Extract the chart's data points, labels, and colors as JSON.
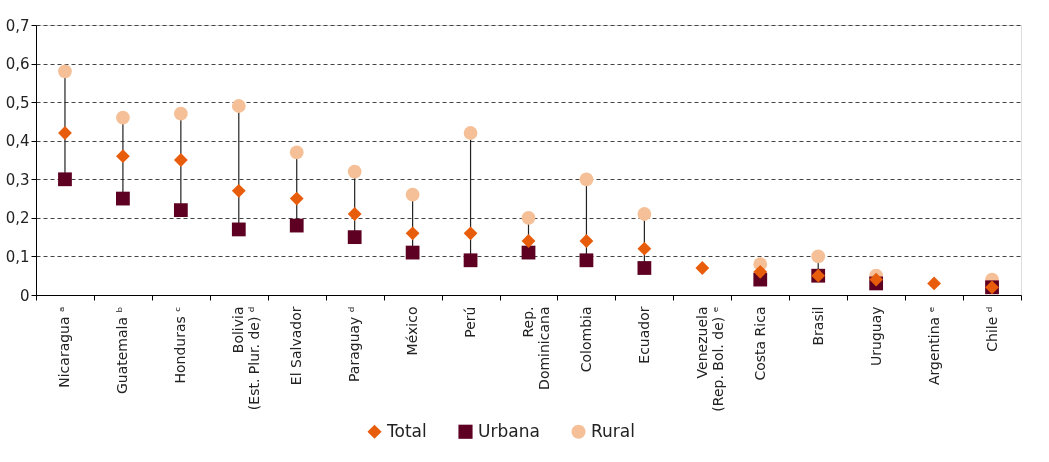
{
  "chart_data": {
    "type": "scatter",
    "categories": [
      "Nicaragua ᵃ",
      "Guatemala ᵇ",
      "Honduras ᶜ",
      "Bolivia\n(Est. Plur. de) ᵈ",
      "El Salvador",
      "Paraguay ᵈ",
      "México",
      "Perú",
      "Rep.\nDominicana",
      "Colombia",
      "Ecuador",
      "Venezuela\n(Rep. Bol. de) ᵉ",
      "Costa Rica",
      "Brasil",
      "Uruguay",
      "Argentina ᵉ",
      "Chile ᵈ"
    ],
    "series": [
      {
        "name": "Total",
        "color": "#e85d0c",
        "marker": "diamond",
        "values": [
          0.42,
          0.36,
          0.35,
          0.27,
          0.25,
          0.21,
          0.16,
          0.16,
          0.14,
          0.14,
          0.12,
          0.07,
          0.06,
          0.05,
          0.04,
          0.03,
          0.02
        ]
      },
      {
        "name": "Urbana",
        "color": "#5e0022",
        "marker": "square",
        "values": [
          0.3,
          0.25,
          0.22,
          0.17,
          0.18,
          0.15,
          0.11,
          0.09,
          0.11,
          0.09,
          0.07,
          null,
          0.04,
          0.05,
          0.03,
          null,
          0.02
        ]
      },
      {
        "name": "Rural",
        "color": "#f5c097",
        "marker": "circle",
        "values": [
          0.58,
          0.46,
          0.47,
          0.49,
          0.37,
          0.32,
          0.26,
          0.42,
          0.2,
          0.3,
          0.21,
          null,
          0.08,
          0.1,
          0.05,
          null,
          0.04
        ]
      }
    ],
    "ylim": [
      0,
      0.7
    ],
    "yticks": [
      {
        "value": 0,
        "label": "0"
      },
      {
        "value": 0.1,
        "label": "0,1"
      },
      {
        "value": 0.2,
        "label": "0,2"
      },
      {
        "value": 0.3,
        "label": "0,3"
      },
      {
        "value": 0.4,
        "label": "0,4"
      },
      {
        "value": 0.5,
        "label": "0,5"
      },
      {
        "value": 0.6,
        "label": "0,6"
      },
      {
        "value": 0.7,
        "label": "0,7"
      }
    ],
    "grid": "y",
    "legend": "bottom"
  }
}
